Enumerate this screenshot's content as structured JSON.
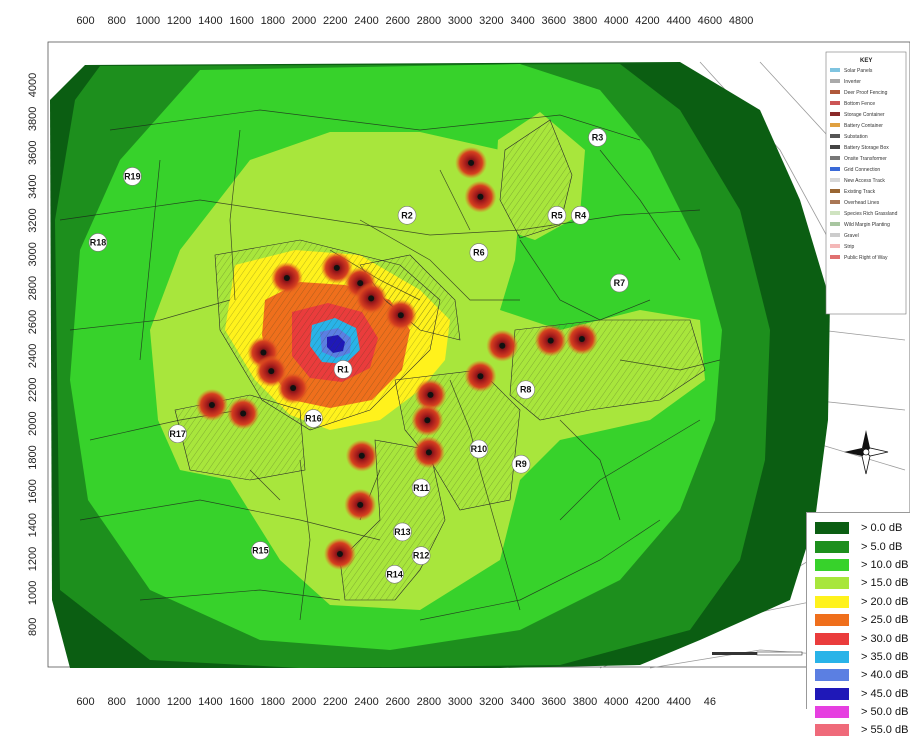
{
  "x_axis_ticks": [
    "600",
    "800",
    "1000",
    "1200",
    "1400",
    "1600",
    "1800",
    "2000",
    "2200",
    "2400",
    "2600",
    "2800",
    "3000",
    "3200",
    "3400",
    "3600",
    "3800",
    "4000",
    "4200",
    "4400",
    "4600",
    "4800"
  ],
  "x_axis_ticks_bottom": [
    "600",
    "800",
    "1000",
    "1200",
    "1400",
    "1600",
    "1800",
    "2000",
    "2200",
    "2400",
    "2600",
    "2800",
    "3000",
    "3200",
    "3400",
    "3600",
    "3800",
    "4000",
    "4200",
    "4400",
    "46"
  ],
  "y_axis_ticks": [
    "4000",
    "3800",
    "3600",
    "3400",
    "3200",
    "3000",
    "2800",
    "2600",
    "2400",
    "2200",
    "2000",
    "1800",
    "1600",
    "1400",
    "1200",
    "1000",
    "800"
  ],
  "receptors": [
    {
      "id": "R1",
      "x": 2250,
      "y": 2320
    },
    {
      "id": "R2",
      "x": 2660,
      "y": 3230
    },
    {
      "id": "R3",
      "x": 3880,
      "y": 3690
    },
    {
      "id": "R4",
      "x": 3770,
      "y": 3230
    },
    {
      "id": "R5",
      "x": 3620,
      "y": 3230
    },
    {
      "id": "R6",
      "x": 3120,
      "y": 3010
    },
    {
      "id": "R7",
      "x": 4020,
      "y": 2830
    },
    {
      "id": "R8",
      "x": 3420,
      "y": 2200
    },
    {
      "id": "R9",
      "x": 3390,
      "y": 1760
    },
    {
      "id": "R10",
      "x": 3120,
      "y": 1850
    },
    {
      "id": "R11",
      "x": 2750,
      "y": 1620
    },
    {
      "id": "R12",
      "x": 2750,
      "y": 1220
    },
    {
      "id": "R13",
      "x": 2630,
      "y": 1360
    },
    {
      "id": "R14",
      "x": 2580,
      "y": 1110
    },
    {
      "id": "R15",
      "x": 1720,
      "y": 1250
    },
    {
      "id": "R16",
      "x": 2060,
      "y": 2030
    },
    {
      "id": "R17",
      "x": 1190,
      "y": 1940
    },
    {
      "id": "R18",
      "x": 680,
      "y": 3070
    },
    {
      "id": "R19",
      "x": 900,
      "y": 3460
    }
  ],
  "sources": [
    {
      "x": 3070,
      "y": 3540
    },
    {
      "x": 3130,
      "y": 3340
    },
    {
      "x": 1890,
      "y": 2860
    },
    {
      "x": 2210,
      "y": 2920
    },
    {
      "x": 2360,
      "y": 2830
    },
    {
      "x": 2430,
      "y": 2740
    },
    {
      "x": 2620,
      "y": 2640
    },
    {
      "x": 1740,
      "y": 2420
    },
    {
      "x": 1790,
      "y": 2310
    },
    {
      "x": 1930,
      "y": 2210
    },
    {
      "x": 3270,
      "y": 2460
    },
    {
      "x": 3580,
      "y": 2490
    },
    {
      "x": 3780,
      "y": 2500
    },
    {
      "x": 3130,
      "y": 2280
    },
    {
      "x": 2810,
      "y": 2170
    },
    {
      "x": 2790,
      "y": 2020
    },
    {
      "x": 2800,
      "y": 1830
    },
    {
      "x": 2370,
      "y": 1810
    },
    {
      "x": 2360,
      "y": 1520
    },
    {
      "x": 2230,
      "y": 1230
    },
    {
      "x": 1410,
      "y": 2110
    },
    {
      "x": 1610,
      "y": 2060
    }
  ],
  "key_panel": {
    "title": "KEY",
    "items": [
      "Solar Panels",
      "Inverter",
      "Deer Proof Fencing",
      "Bottom Fence",
      "Storage Container",
      "Battery Container",
      "Substation",
      "Battery Storage Box",
      "Onsite Transformer",
      "Grid Connection",
      "New Access Track",
      "Existing Track",
      "Overhead Lines",
      "Species Rich Grassland",
      "Wild Margin Planting",
      "Gravel",
      "Strip",
      "Public Right of Way"
    ]
  },
  "legend": [
    {
      "label": "> 0.0 dB",
      "color": "#0b5e12"
    },
    {
      "label": "> 5.0 dB",
      "color": "#1d8f1d"
    },
    {
      "label": "> 10.0 dB",
      "color": "#37d22b"
    },
    {
      "label": "> 15.0 dB",
      "color": "#a8e63c"
    },
    {
      "label": "> 20.0 dB",
      "color": "#fff21c"
    },
    {
      "label": "> 25.0 dB",
      "color": "#ef6f1c"
    },
    {
      "label": "> 30.0 dB",
      "color": "#ea3c3c"
    },
    {
      "label": "> 35.0 dB",
      "color": "#29b3e8"
    },
    {
      "label": "> 40.0 dB",
      "color": "#5b7fe2"
    },
    {
      "label": "> 45.0 dB",
      "color": "#1f18b8"
    },
    {
      "label": "> 50.0 dB",
      "color": "#e63fe0"
    },
    {
      "label": "> 55.0 dB",
      "color": "#ef6a7a"
    }
  ],
  "colors": {
    "road": "#d9d9d9",
    "field_line": "#1c1c1c",
    "contour": "#2a4a1a",
    "map_bg": "#ffffff"
  }
}
